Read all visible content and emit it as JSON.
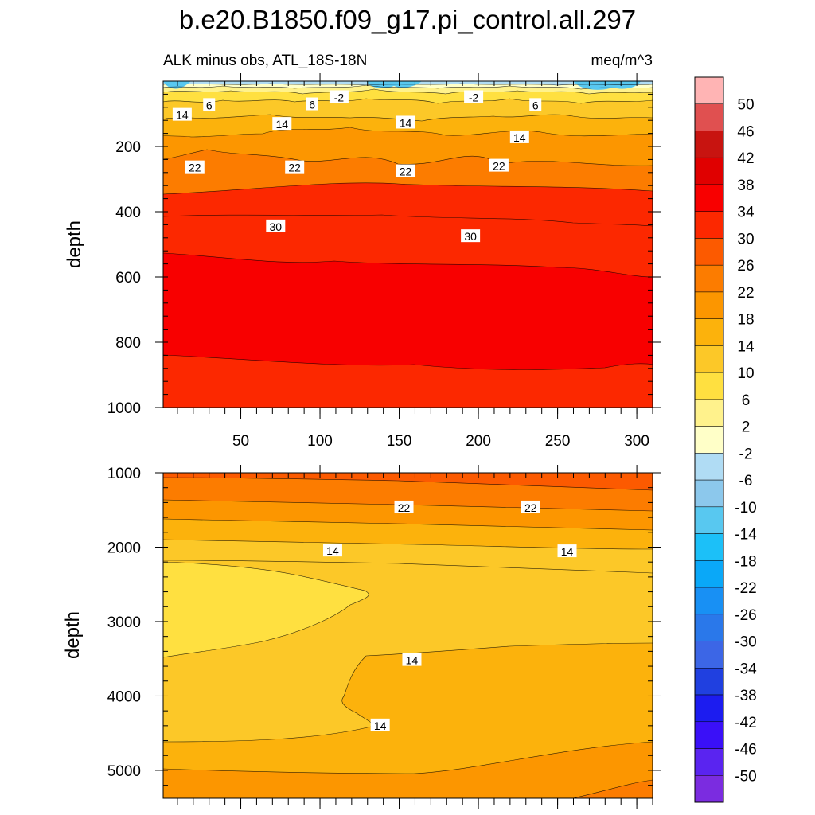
{
  "chart_data": {
    "type": "heatmap",
    "title": "b.e20.B1850.f09_g17.pi_control.all.297",
    "subtitle_left": "ALK minus obs, ATL_18S-18N",
    "subtitle_right": "meq/m^3",
    "colorbar": {
      "colors": [
        "#7b2ce0",
        "#5a24f0",
        "#3a10f8",
        "#1c1cf0",
        "#2040e0",
        "#3c66e6",
        "#2a78ea",
        "#1890f4",
        "#0aa8f8",
        "#1cc0f8",
        "#58c8f0",
        "#8cc8ec",
        "#b0dcf4",
        "#ffffc8",
        "#fff28c",
        "#ffe040",
        "#fcc828",
        "#fcb20c",
        "#fc9600",
        "#fc7c00",
        "#fc5a00",
        "#fc2800",
        "#f80000",
        "#e00000",
        "#c81410",
        "#e05050",
        "#ffb4b4"
      ],
      "levels": [
        "-50",
        "-46",
        "-42",
        "-38",
        "-34",
        "-30",
        "-26",
        "-22",
        "-18",
        "-14",
        "-10",
        "-6",
        "-2",
        "2",
        "6",
        "10",
        "14",
        "18",
        "22",
        "26",
        "30",
        "34",
        "38",
        "42",
        "46",
        "50"
      ]
    },
    "panels": [
      {
        "name": "upper",
        "ylabel": "depth",
        "ylim": [
          1000,
          0
        ],
        "xlim": [
          1,
          310
        ],
        "y_ticks": [
          "200",
          "400",
          "600",
          "800",
          "1000"
        ],
        "x_ticks": [
          "50",
          "100",
          "150",
          "200",
          "250",
          "300"
        ],
        "contour_labels": [
          {
            "text": "-2",
            "x": 112,
            "y": 50
          },
          {
            "text": "-2",
            "x": 197,
            "y": 50
          },
          {
            "text": "6",
            "x": 30,
            "y": 74
          },
          {
            "text": "6",
            "x": 95,
            "y": 72
          },
          {
            "text": "6",
            "x": 236,
            "y": 74
          },
          {
            "text": "14",
            "x": 13,
            "y": 104
          },
          {
            "text": "14",
            "x": 76,
            "y": 132
          },
          {
            "text": "14",
            "x": 154,
            "y": 128
          },
          {
            "text": "14",
            "x": 226,
            "y": 173
          },
          {
            "text": "22",
            "x": 21,
            "y": 265
          },
          {
            "text": "22",
            "x": 84,
            "y": 265
          },
          {
            "text": "22",
            "x": 154,
            "y": 277
          },
          {
            "text": "22",
            "x": 213,
            "y": 260
          },
          {
            "text": "30",
            "x": 72,
            "y": 446
          },
          {
            "text": "30",
            "x": 195,
            "y": 476
          }
        ]
      },
      {
        "name": "lower",
        "ylabel": "depth",
        "ylim": [
          5375,
          1000
        ],
        "xlim": [
          1,
          310
        ],
        "y_ticks": [
          "1000",
          "2000",
          "3000",
          "4000",
          "5000"
        ],
        "contour_labels": [
          {
            "text": "22",
            "x": 153,
            "y": 1470
          },
          {
            "text": "22",
            "x": 233,
            "y": 1470
          },
          {
            "text": "14",
            "x": 108,
            "y": 2050
          },
          {
            "text": "14",
            "x": 256,
            "y": 2060
          },
          {
            "text": "14",
            "x": 158,
            "y": 3520
          },
          {
            "text": "14",
            "x": 138,
            "y": 4400
          }
        ]
      }
    ]
  }
}
